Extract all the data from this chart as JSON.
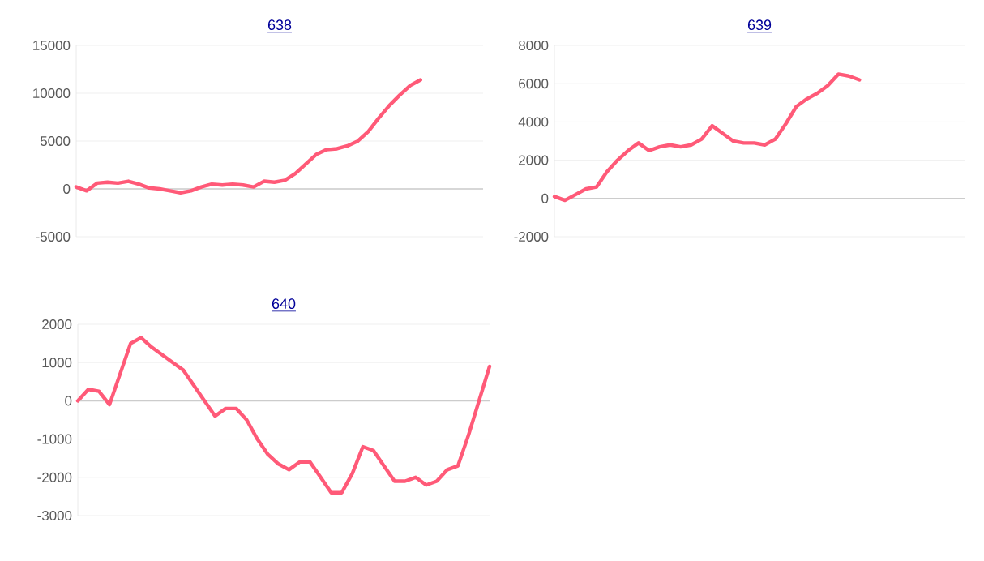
{
  "chart_data": [
    {
      "type": "line",
      "title": "638",
      "categories": [
        null,
        null,
        null,
        null,
        null,
        null,
        null,
        null,
        null,
        null,
        null,
        null,
        null,
        null,
        null,
        null,
        null,
        null,
        null,
        null,
        null,
        null,
        null,
        null,
        null,
        null,
        null,
        null,
        null,
        null,
        null,
        null,
        null,
        null,
        null,
        null,
        null,
        null,
        null,
        null
      ],
      "series": [
        {
          "color": "#ff5a78",
          "values": [
            200,
            -200,
            600,
            700,
            600,
            800,
            500,
            100,
            0,
            -200,
            -400,
            -200,
            200,
            500,
            400,
            500,
            400,
            200,
            800,
            700,
            900,
            1600,
            2600,
            3600,
            4100,
            4200,
            4500,
            5000,
            6000,
            7400,
            8700,
            9800,
            10800,
            11400,
            null,
            null,
            null,
            null,
            null,
            null
          ]
        }
      ],
      "ylim": [
        -5000,
        15000
      ],
      "yticks": [
        -5000,
        0,
        5000,
        10000,
        15000
      ],
      "grid": "y",
      "tick_labels": "y"
    },
    {
      "type": "line",
      "title": "639",
      "categories": [
        null,
        null,
        null,
        null,
        null,
        null,
        null,
        null,
        null,
        null,
        null,
        null,
        null,
        null,
        null,
        null,
        null,
        null,
        null,
        null,
        null,
        null,
        null,
        null,
        null,
        null,
        null,
        null,
        null,
        null,
        null,
        null,
        null,
        null,
        null,
        null,
        null,
        null,
        null,
        null
      ],
      "series": [
        {
          "color": "#ff5a78",
          "values": [
            100,
            -100,
            200,
            500,
            600,
            1400,
            2000,
            2500,
            2900,
            2500,
            2700,
            2800,
            2700,
            2800,
            3100,
            3800,
            3400,
            3000,
            2900,
            2900,
            2800,
            3100,
            3900,
            4800,
            5200,
            5500,
            5900,
            6500,
            6400,
            6200,
            null,
            null,
            null,
            null,
            null,
            null,
            null,
            null,
            null,
            null
          ]
        }
      ],
      "ylim": [
        -2000,
        8000
      ],
      "yticks": [
        -2000,
        0,
        2000,
        4000,
        6000,
        8000
      ],
      "grid": "y",
      "tick_labels": "y"
    },
    {
      "type": "line",
      "title": "640",
      "categories": [
        null,
        null,
        null,
        null,
        null,
        null,
        null,
        null,
        null,
        null,
        null,
        null,
        null,
        null,
        null,
        null,
        null,
        null,
        null,
        null,
        null,
        null,
        null,
        null,
        null,
        null,
        null,
        null,
        null,
        null,
        null,
        null,
        null,
        null,
        null,
        null,
        null,
        null,
        null,
        null
      ],
      "series": [
        {
          "color": "#ff5a78",
          "values": [
            0,
            300,
            250,
            -100,
            700,
            1500,
            1650,
            1400,
            1200,
            1000,
            800,
            400,
            0,
            -400,
            -200,
            -200,
            -500,
            -1000,
            -1400,
            -1650,
            -1800,
            -1600,
            -1600,
            -2000,
            -2400,
            -2400,
            -1900,
            -1200,
            -1300,
            -1700,
            -2100,
            -2100,
            -2000,
            -2200,
            -2100,
            -1800,
            -1700,
            -900,
            0,
            900
          ]
        }
      ],
      "ylim": [
        -3000,
        2000
      ],
      "yticks": [
        -3000,
        -2000,
        -1000,
        0,
        1000,
        2000
      ],
      "grid": "y",
      "tick_labels": "y"
    }
  ]
}
